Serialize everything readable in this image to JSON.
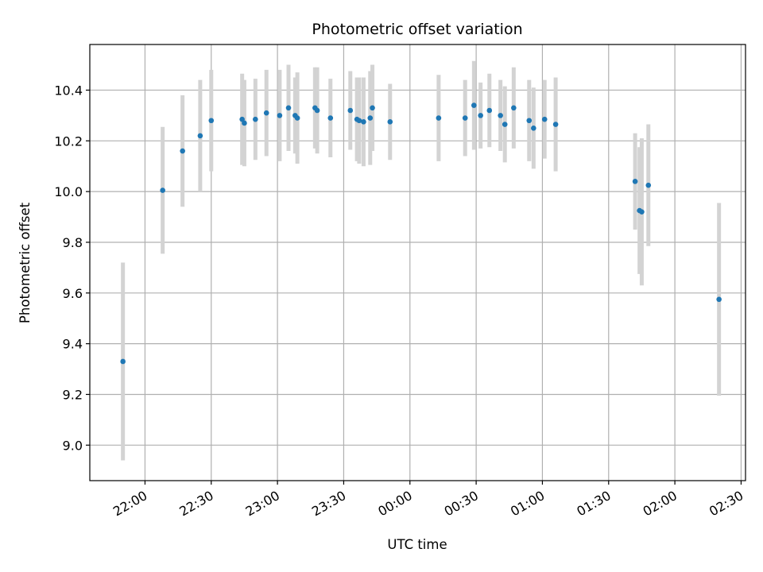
{
  "chart_data": {
    "type": "scatter",
    "title": "Photometric offset variation",
    "xlabel": "UTC time",
    "ylabel": "Photometric offset",
    "x_tick_labels": [
      "22:00",
      "22:30",
      "23:00",
      "23:30",
      "00:00",
      "00:30",
      "01:00",
      "01:30",
      "02:00",
      "02:30"
    ],
    "y_tick_labels": [
      "9.0",
      "9.2",
      "9.4",
      "9.6",
      "9.8",
      "10.0",
      "10.2",
      "10.4"
    ],
    "xlim": [
      "21:35",
      "02:32"
    ],
    "ylim": [
      8.86,
      10.58
    ],
    "grid": true,
    "colors": {
      "point": "#1f77b4",
      "errorbar": "#d3d3d3",
      "grid": "#b0b0b0",
      "axes": "#000000"
    },
    "points": [
      {
        "time": "21:50",
        "y": 9.33,
        "err": 0.39
      },
      {
        "time": "22:08",
        "y": 10.005,
        "err": 0.25
      },
      {
        "time": "22:17",
        "y": 10.16,
        "err": 0.22
      },
      {
        "time": "22:25",
        "y": 10.22,
        "err": 0.22
      },
      {
        "time": "22:30",
        "y": 10.28,
        "err": 0.2
      },
      {
        "time": "22:44",
        "y": 10.285,
        "err": 0.18
      },
      {
        "time": "22:45",
        "y": 10.27,
        "err": 0.17
      },
      {
        "time": "22:50",
        "y": 10.285,
        "err": 0.16
      },
      {
        "time": "22:55",
        "y": 10.31,
        "err": 0.17
      },
      {
        "time": "23:01",
        "y": 10.3,
        "err": 0.18
      },
      {
        "time": "23:05",
        "y": 10.33,
        "err": 0.17
      },
      {
        "time": "23:08",
        "y": 10.3,
        "err": 0.15
      },
      {
        "time": "23:09",
        "y": 10.29,
        "err": 0.18
      },
      {
        "time": "23:17",
        "y": 10.33,
        "err": 0.16
      },
      {
        "time": "23:18",
        "y": 10.32,
        "err": 0.17
      },
      {
        "time": "23:24",
        "y": 10.29,
        "err": 0.155
      },
      {
        "time": "23:33",
        "y": 10.32,
        "err": 0.155
      },
      {
        "time": "23:36",
        "y": 10.285,
        "err": 0.165
      },
      {
        "time": "23:37",
        "y": 10.28,
        "err": 0.17
      },
      {
        "time": "23:39",
        "y": 10.275,
        "err": 0.175
      },
      {
        "time": "23:42",
        "y": 10.29,
        "err": 0.185
      },
      {
        "time": "23:43",
        "y": 10.33,
        "err": 0.17
      },
      {
        "time": "23:51",
        "y": 10.275,
        "err": 0.15
      },
      {
        "time": "00:13",
        "y": 10.29,
        "err": 0.17
      },
      {
        "time": "00:25",
        "y": 10.29,
        "err": 0.15
      },
      {
        "time": "00:29",
        "y": 10.34,
        "err": 0.175
      },
      {
        "time": "00:32",
        "y": 10.3,
        "err": 0.13
      },
      {
        "time": "00:36",
        "y": 10.32,
        "err": 0.145
      },
      {
        "time": "00:41",
        "y": 10.3,
        "err": 0.14
      },
      {
        "time": "00:43",
        "y": 10.265,
        "err": 0.15
      },
      {
        "time": "00:47",
        "y": 10.33,
        "err": 0.16
      },
      {
        "time": "00:54",
        "y": 10.28,
        "err": 0.16
      },
      {
        "time": "00:56",
        "y": 10.25,
        "err": 0.16
      },
      {
        "time": "01:01",
        "y": 10.285,
        "err": 0.155
      },
      {
        "time": "01:06",
        "y": 10.265,
        "err": 0.185
      },
      {
        "time": "01:42",
        "y": 10.04,
        "err": 0.19
      },
      {
        "time": "01:44",
        "y": 9.925,
        "err": 0.25
      },
      {
        "time": "01:45",
        "y": 9.92,
        "err": 0.29
      },
      {
        "time": "01:48",
        "y": 10.025,
        "err": 0.24
      },
      {
        "time": "02:20",
        "y": 9.575,
        "err": 0.38
      }
    ]
  }
}
